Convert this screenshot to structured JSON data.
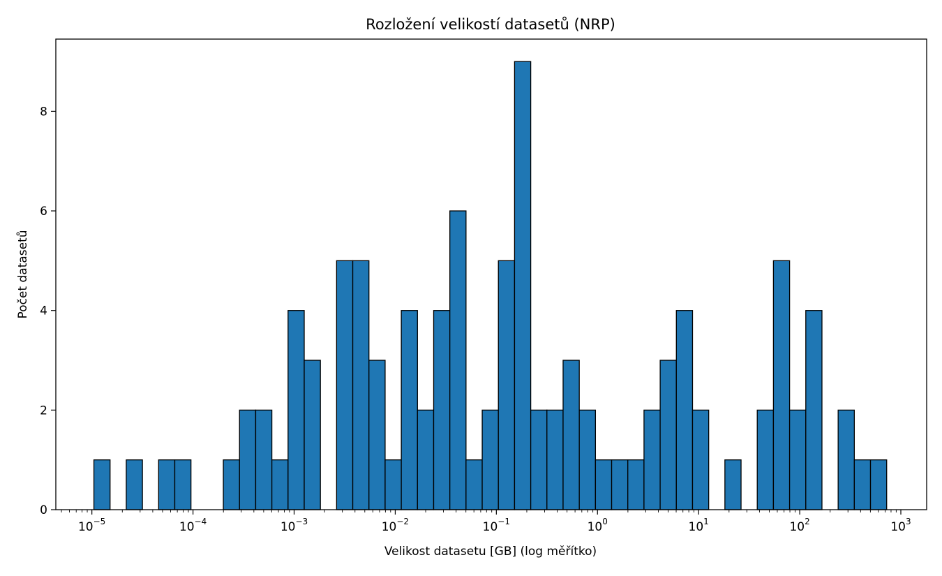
{
  "chart_data": {
    "type": "bar",
    "title": "Rozložení velikostí datasetů (NRP)",
    "xlabel": "Velikost datasetu [GB] (log měřítko)",
    "ylabel": "Počet datasetů",
    "x_scale": "log",
    "xlim": [
      4.4e-06,
      1800
    ],
    "ylim": [
      0,
      9.45
    ],
    "grid": false,
    "bar_color": "#1f77b4",
    "edge_color": "#000000",
    "bin_edges_log10": [
      -4.98,
      -4.82,
      -4.66,
      -4.5,
      -4.34,
      -4.18,
      -4.02,
      -3.86,
      -3.7,
      -3.54,
      -3.38,
      -3.22,
      -3.06,
      -2.9,
      -2.74,
      -2.58,
      -2.42,
      -2.26,
      -2.1,
      -1.94,
      -1.78,
      -1.62,
      -1.46,
      -1.3,
      -1.14,
      -0.98,
      -0.82,
      -0.66,
      -0.5,
      -0.34,
      -0.18,
      -0.02,
      0.14,
      0.3,
      0.46,
      0.62,
      0.78,
      0.94,
      1.1,
      1.26,
      1.42,
      1.58,
      1.74,
      1.9,
      2.06,
      2.22,
      2.38,
      2.54,
      2.7,
      2.86,
      3.02
    ],
    "counts": [
      1,
      0,
      1,
      0,
      1,
      1,
      0,
      0,
      1,
      2,
      2,
      1,
      4,
      3,
      0,
      5,
      5,
      3,
      1,
      4,
      2,
      4,
      6,
      1,
      2,
      5,
      9,
      2,
      2,
      3,
      2,
      1,
      1,
      1,
      2,
      3,
      4,
      2,
      0,
      1,
      0,
      2,
      5,
      2,
      4,
      0,
      2,
      1,
      1,
      0
    ],
    "y_ticks": [
      0,
      2,
      4,
      6,
      8
    ],
    "x_ticks": [
      {
        "value": 1e-05,
        "base": "10",
        "exp": "−5"
      },
      {
        "value": 0.0001,
        "base": "10",
        "exp": "−4"
      },
      {
        "value": 0.001,
        "base": "10",
        "exp": "−3"
      },
      {
        "value": 0.01,
        "base": "10",
        "exp": "−2"
      },
      {
        "value": 0.1,
        "base": "10",
        "exp": "−1"
      },
      {
        "value": 1,
        "base": "10",
        "exp": "0"
      },
      {
        "value": 10,
        "base": "10",
        "exp": "1"
      },
      {
        "value": 100,
        "base": "10",
        "exp": "2"
      },
      {
        "value": 1000,
        "base": "10",
        "exp": "3"
      }
    ]
  }
}
